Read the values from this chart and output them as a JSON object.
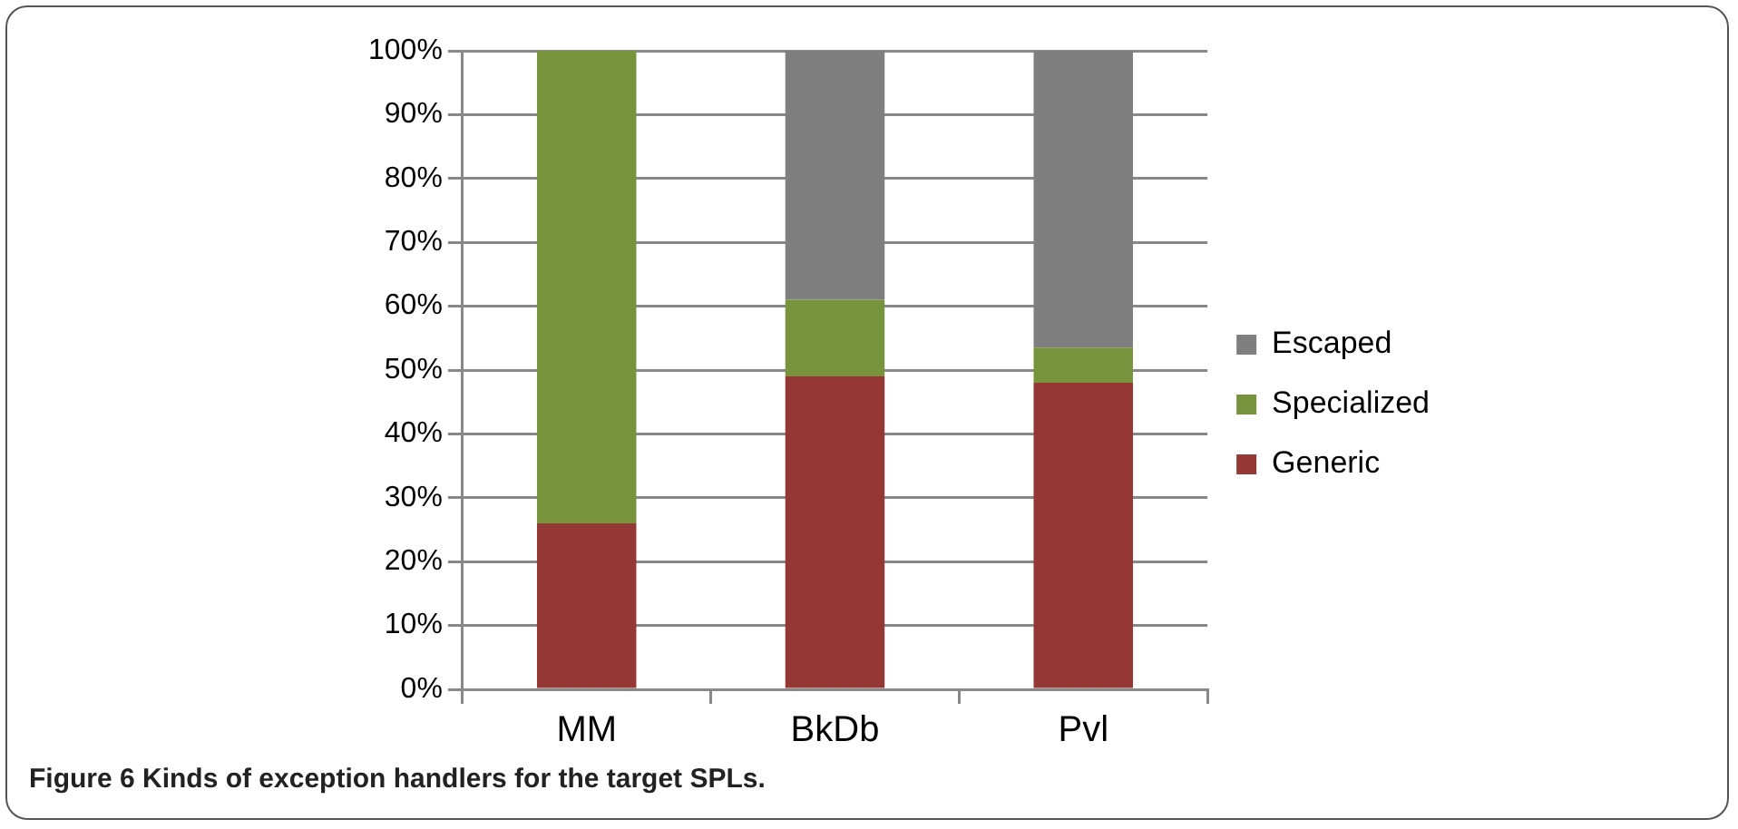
{
  "chart_data": {
    "type": "bar",
    "title": "Figure 6 Kinds of exception handlers for the target SPLs.",
    "categories": [
      "MM",
      "BkDb",
      "Pvl"
    ],
    "series": [
      {
        "name": "Generic",
        "color": "#953735",
        "values": [
          26,
          49,
          48
        ]
      },
      {
        "name": "Specialized",
        "color": "#77933c",
        "values": [
          74,
          12,
          5.5
        ]
      },
      {
        "name": "Escaped",
        "color": "#7f7f7f",
        "values": [
          0,
          39,
          46.5
        ]
      }
    ],
    "stacked": true,
    "ylim": [
      0,
      100
    ],
    "yticks": [
      {
        "value": 0,
        "label": "0%"
      },
      {
        "value": 10,
        "label": "10%"
      },
      {
        "value": 20,
        "label": "20%"
      },
      {
        "value": 30,
        "label": "30%"
      },
      {
        "value": 40,
        "label": "40%"
      },
      {
        "value": 50,
        "label": "50%"
      },
      {
        "value": 60,
        "label": "60%"
      },
      {
        "value": 70,
        "label": "70%"
      },
      {
        "value": 80,
        "label": "80%"
      },
      {
        "value": 90,
        "label": "90%"
      },
      {
        "value": 100,
        "label": "100%"
      }
    ],
    "grid": "y",
    "legend": "right"
  }
}
